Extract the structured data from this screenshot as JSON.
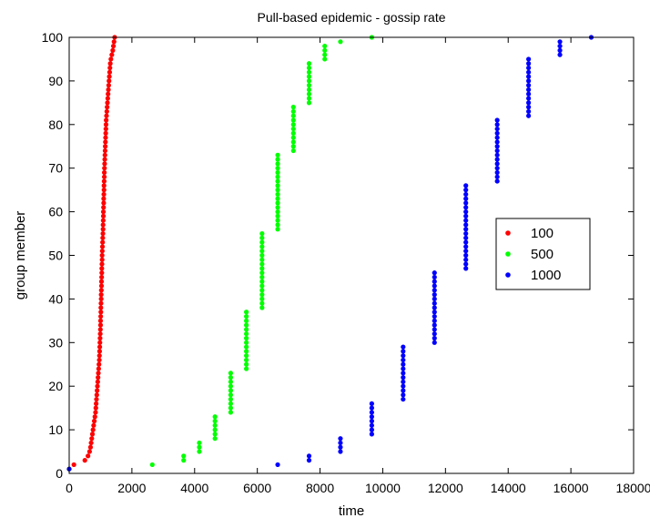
{
  "chart_data": {
    "type": "scatter",
    "title": "Pull-based epidemic - gossip rate",
    "xlabel": "time",
    "ylabel": "group member",
    "xlim": [
      0,
      18000
    ],
    "ylim": [
      0,
      100
    ],
    "xticks": [
      0,
      2000,
      4000,
      6000,
      8000,
      10000,
      12000,
      14000,
      16000,
      18000
    ],
    "yticks": [
      0,
      10,
      20,
      30,
      40,
      50,
      60,
      70,
      80,
      90,
      100
    ],
    "grid": false,
    "legend_position": "right",
    "series": [
      {
        "name": "100",
        "color": "#ff0000",
        "points": [
          [
            0,
            1
          ],
          [
            150,
            2
          ],
          [
            500,
            3
          ],
          [
            600,
            4
          ],
          [
            650,
            5
          ],
          [
            680,
            6
          ],
          [
            700,
            7
          ],
          [
            720,
            8
          ],
          [
            740,
            9
          ],
          [
            760,
            10
          ],
          [
            780,
            11
          ],
          [
            800,
            12
          ],
          [
            820,
            13
          ],
          [
            840,
            14
          ],
          [
            850,
            15
          ],
          [
            860,
            16
          ],
          [
            870,
            17
          ],
          [
            880,
            18
          ],
          [
            890,
            19
          ],
          [
            900,
            20
          ],
          [
            910,
            21
          ],
          [
            920,
            22
          ],
          [
            930,
            23
          ],
          [
            940,
            24
          ],
          [
            950,
            25
          ],
          [
            960,
            26
          ],
          [
            965,
            27
          ],
          [
            970,
            28
          ],
          [
            975,
            29
          ],
          [
            980,
            30
          ],
          [
            985,
            31
          ],
          [
            990,
            32
          ],
          [
            995,
            33
          ],
          [
            1000,
            34
          ],
          [
            1000,
            35
          ],
          [
            1005,
            36
          ],
          [
            1010,
            37
          ],
          [
            1010,
            38
          ],
          [
            1015,
            39
          ],
          [
            1020,
            40
          ],
          [
            1020,
            41
          ],
          [
            1025,
            42
          ],
          [
            1030,
            43
          ],
          [
            1030,
            44
          ],
          [
            1035,
            45
          ],
          [
            1040,
            46
          ],
          [
            1040,
            47
          ],
          [
            1045,
            48
          ],
          [
            1050,
            49
          ],
          [
            1050,
            50
          ],
          [
            1055,
            51
          ],
          [
            1060,
            52
          ],
          [
            1065,
            53
          ],
          [
            1070,
            54
          ],
          [
            1075,
            55
          ],
          [
            1080,
            56
          ],
          [
            1080,
            57
          ],
          [
            1085,
            58
          ],
          [
            1090,
            59
          ],
          [
            1090,
            60
          ],
          [
            1095,
            61
          ],
          [
            1100,
            62
          ],
          [
            1100,
            63
          ],
          [
            1105,
            64
          ],
          [
            1110,
            65
          ],
          [
            1110,
            66
          ],
          [
            1115,
            67
          ],
          [
            1120,
            68
          ],
          [
            1120,
            69
          ],
          [
            1125,
            70
          ],
          [
            1130,
            71
          ],
          [
            1135,
            72
          ],
          [
            1140,
            73
          ],
          [
            1145,
            74
          ],
          [
            1150,
            75
          ],
          [
            1155,
            76
          ],
          [
            1160,
            77
          ],
          [
            1165,
            78
          ],
          [
            1170,
            79
          ],
          [
            1175,
            80
          ],
          [
            1180,
            81
          ],
          [
            1190,
            82
          ],
          [
            1200,
            83
          ],
          [
            1210,
            84
          ],
          [
            1220,
            85
          ],
          [
            1230,
            86
          ],
          [
            1240,
            87
          ],
          [
            1250,
            88
          ],
          [
            1260,
            89
          ],
          [
            1270,
            90
          ],
          [
            1280,
            91
          ],
          [
            1290,
            92
          ],
          [
            1300,
            93
          ],
          [
            1310,
            94
          ],
          [
            1330,
            95
          ],
          [
            1360,
            96
          ],
          [
            1390,
            97
          ],
          [
            1410,
            98
          ],
          [
            1430,
            99
          ],
          [
            1450,
            100
          ]
        ]
      },
      {
        "name": "500",
        "color": "#00ff00",
        "points": [
          [
            0,
            1
          ],
          [
            2650,
            2
          ],
          [
            3650,
            3
          ],
          [
            3650,
            4
          ],
          [
            4150,
            5
          ],
          [
            4150,
            6
          ],
          [
            4150,
            7
          ],
          [
            4650,
            8
          ],
          [
            4650,
            9
          ],
          [
            4650,
            10
          ],
          [
            4650,
            11
          ],
          [
            4650,
            12
          ],
          [
            4650,
            13
          ],
          [
            5150,
            14
          ],
          [
            5150,
            15
          ],
          [
            5150,
            16
          ],
          [
            5150,
            17
          ],
          [
            5150,
            18
          ],
          [
            5150,
            19
          ],
          [
            5150,
            20
          ],
          [
            5150,
            21
          ],
          [
            5150,
            22
          ],
          [
            5150,
            23
          ],
          [
            5650,
            24
          ],
          [
            5650,
            25
          ],
          [
            5650,
            26
          ],
          [
            5650,
            27
          ],
          [
            5650,
            28
          ],
          [
            5650,
            29
          ],
          [
            5650,
            30
          ],
          [
            5650,
            31
          ],
          [
            5650,
            32
          ],
          [
            5650,
            33
          ],
          [
            5650,
            34
          ],
          [
            5650,
            35
          ],
          [
            5650,
            36
          ],
          [
            5650,
            37
          ],
          [
            6150,
            38
          ],
          [
            6150,
            39
          ],
          [
            6150,
            40
          ],
          [
            6150,
            41
          ],
          [
            6150,
            42
          ],
          [
            6150,
            43
          ],
          [
            6150,
            44
          ],
          [
            6150,
            45
          ],
          [
            6150,
            46
          ],
          [
            6150,
            47
          ],
          [
            6150,
            48
          ],
          [
            6150,
            49
          ],
          [
            6150,
            50
          ],
          [
            6150,
            51
          ],
          [
            6150,
            52
          ],
          [
            6150,
            53
          ],
          [
            6150,
            54
          ],
          [
            6150,
            55
          ],
          [
            6650,
            56
          ],
          [
            6650,
            57
          ],
          [
            6650,
            58
          ],
          [
            6650,
            59
          ],
          [
            6650,
            60
          ],
          [
            6650,
            61
          ],
          [
            6650,
            62
          ],
          [
            6650,
            63
          ],
          [
            6650,
            64
          ],
          [
            6650,
            65
          ],
          [
            6650,
            66
          ],
          [
            6650,
            67
          ],
          [
            6650,
            68
          ],
          [
            6650,
            69
          ],
          [
            6650,
            70
          ],
          [
            6650,
            71
          ],
          [
            6650,
            72
          ],
          [
            6650,
            73
          ],
          [
            7150,
            74
          ],
          [
            7150,
            75
          ],
          [
            7150,
            76
          ],
          [
            7150,
            77
          ],
          [
            7150,
            78
          ],
          [
            7150,
            79
          ],
          [
            7150,
            80
          ],
          [
            7150,
            81
          ],
          [
            7150,
            82
          ],
          [
            7150,
            83
          ],
          [
            7150,
            84
          ],
          [
            7650,
            85
          ],
          [
            7650,
            86
          ],
          [
            7650,
            87
          ],
          [
            7650,
            88
          ],
          [
            7650,
            89
          ],
          [
            7650,
            90
          ],
          [
            7650,
            91
          ],
          [
            7650,
            92
          ],
          [
            7650,
            93
          ],
          [
            7650,
            94
          ],
          [
            8150,
            95
          ],
          [
            8150,
            96
          ],
          [
            8150,
            97
          ],
          [
            8150,
            98
          ],
          [
            8650,
            99
          ],
          [
            9650,
            100
          ]
        ]
      },
      {
        "name": "1000",
        "color": "#0000ff",
        "points": [
          [
            0,
            1
          ],
          [
            6650,
            2
          ],
          [
            7650,
            3
          ],
          [
            7650,
            4
          ],
          [
            8650,
            5
          ],
          [
            8650,
            6
          ],
          [
            8650,
            7
          ],
          [
            8650,
            8
          ],
          [
            9650,
            9
          ],
          [
            9650,
            10
          ],
          [
            9650,
            11
          ],
          [
            9650,
            12
          ],
          [
            9650,
            13
          ],
          [
            9650,
            14
          ],
          [
            9650,
            15
          ],
          [
            9650,
            16
          ],
          [
            10650,
            17
          ],
          [
            10650,
            18
          ],
          [
            10650,
            19
          ],
          [
            10650,
            20
          ],
          [
            10650,
            21
          ],
          [
            10650,
            22
          ],
          [
            10650,
            23
          ],
          [
            10650,
            24
          ],
          [
            10650,
            25
          ],
          [
            10650,
            26
          ],
          [
            10650,
            27
          ],
          [
            10650,
            28
          ],
          [
            10650,
            29
          ],
          [
            11650,
            30
          ],
          [
            11650,
            31
          ],
          [
            11650,
            32
          ],
          [
            11650,
            33
          ],
          [
            11650,
            34
          ],
          [
            11650,
            35
          ],
          [
            11650,
            36
          ],
          [
            11650,
            37
          ],
          [
            11650,
            38
          ],
          [
            11650,
            39
          ],
          [
            11650,
            40
          ],
          [
            11650,
            41
          ],
          [
            11650,
            42
          ],
          [
            11650,
            43
          ],
          [
            11650,
            44
          ],
          [
            11650,
            45
          ],
          [
            11650,
            46
          ],
          [
            12650,
            47
          ],
          [
            12650,
            48
          ],
          [
            12650,
            49
          ],
          [
            12650,
            50
          ],
          [
            12650,
            51
          ],
          [
            12650,
            52
          ],
          [
            12650,
            53
          ],
          [
            12650,
            54
          ],
          [
            12650,
            55
          ],
          [
            12650,
            56
          ],
          [
            12650,
            57
          ],
          [
            12650,
            58
          ],
          [
            12650,
            59
          ],
          [
            12650,
            60
          ],
          [
            12650,
            61
          ],
          [
            12650,
            62
          ],
          [
            12650,
            63
          ],
          [
            12650,
            64
          ],
          [
            12650,
            65
          ],
          [
            12650,
            66
          ],
          [
            13650,
            67
          ],
          [
            13650,
            68
          ],
          [
            13650,
            69
          ],
          [
            13650,
            70
          ],
          [
            13650,
            71
          ],
          [
            13650,
            72
          ],
          [
            13650,
            73
          ],
          [
            13650,
            74
          ],
          [
            13650,
            75
          ],
          [
            13650,
            76
          ],
          [
            13650,
            77
          ],
          [
            13650,
            78
          ],
          [
            13650,
            79
          ],
          [
            13650,
            80
          ],
          [
            13650,
            81
          ],
          [
            14650,
            82
          ],
          [
            14650,
            83
          ],
          [
            14650,
            84
          ],
          [
            14650,
            85
          ],
          [
            14650,
            86
          ],
          [
            14650,
            87
          ],
          [
            14650,
            88
          ],
          [
            14650,
            89
          ],
          [
            14650,
            90
          ],
          [
            14650,
            91
          ],
          [
            14650,
            92
          ],
          [
            14650,
            93
          ],
          [
            14650,
            94
          ],
          [
            14650,
            95
          ],
          [
            15650,
            96
          ],
          [
            15650,
            97
          ],
          [
            15650,
            98
          ],
          [
            15650,
            99
          ],
          [
            16650,
            100
          ]
        ]
      }
    ]
  }
}
